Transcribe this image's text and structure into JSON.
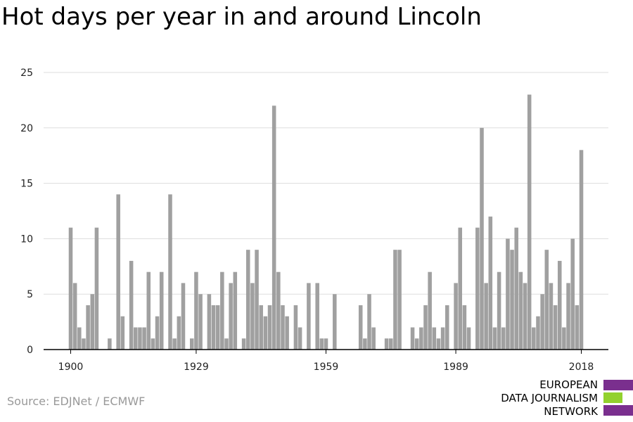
{
  "title": "Hot days per year in and around Lincoln",
  "source": "Source: EDJNet / ECMWF",
  "logo": {
    "line1": "EUROPEAN",
    "line2": "DATA JOURNALISM",
    "line3": "NETWORK",
    "colors": {
      "primary": "#7a2f8e",
      "secondary": "#92d12e"
    }
  },
  "colors": {
    "bar": "#a0a0a0",
    "grid": "#dddddd",
    "axis": "#000000",
    "text": "#222222"
  },
  "chart_data": {
    "type": "bar",
    "title": "Hot days per year in and around Lincoln",
    "xlabel": "",
    "ylabel": "",
    "xlim": [
      1900,
      2018
    ],
    "ylim": [
      0,
      25
    ],
    "yticks": [
      0,
      5,
      10,
      15,
      20,
      25
    ],
    "xticks": [
      1900,
      1929,
      1959,
      1989,
      2018
    ],
    "grid": true,
    "x": [
      1900,
      1901,
      1902,
      1903,
      1904,
      1905,
      1906,
      1907,
      1908,
      1909,
      1910,
      1911,
      1912,
      1913,
      1914,
      1915,
      1916,
      1917,
      1918,
      1919,
      1920,
      1921,
      1922,
      1923,
      1924,
      1925,
      1926,
      1927,
      1928,
      1929,
      1930,
      1931,
      1932,
      1933,
      1934,
      1935,
      1936,
      1937,
      1938,
      1939,
      1940,
      1941,
      1942,
      1943,
      1944,
      1945,
      1946,
      1947,
      1948,
      1949,
      1950,
      1951,
      1952,
      1953,
      1954,
      1955,
      1956,
      1957,
      1958,
      1959,
      1960,
      1961,
      1962,
      1963,
      1964,
      1965,
      1966,
      1967,
      1968,
      1969,
      1970,
      1971,
      1972,
      1973,
      1974,
      1975,
      1976,
      1977,
      1978,
      1979,
      1980,
      1981,
      1982,
      1983,
      1984,
      1985,
      1986,
      1987,
      1988,
      1989,
      1990,
      1991,
      1992,
      1993,
      1994,
      1995,
      1996,
      1997,
      1998,
      1999,
      2000,
      2001,
      2002,
      2003,
      2004,
      2005,
      2006,
      2007,
      2008,
      2009,
      2010,
      2011,
      2012,
      2013,
      2014,
      2015,
      2016,
      2017,
      2018
    ],
    "values": [
      11,
      6,
      2,
      1,
      4,
      5,
      11,
      0,
      0,
      1,
      0,
      14,
      3,
      0,
      8,
      2,
      2,
      2,
      7,
      1,
      3,
      7,
      0,
      14,
      1,
      3,
      6,
      0,
      1,
      7,
      5,
      0,
      5,
      4,
      4,
      7,
      1,
      6,
      7,
      0,
      1,
      9,
      6,
      9,
      4,
      3,
      4,
      22,
      7,
      4,
      3,
      0,
      4,
      2,
      0,
      6,
      0,
      6,
      1,
      1,
      0,
      5,
      0,
      0,
      0,
      0,
      0,
      4,
      1,
      5,
      2,
      0,
      0,
      1,
      1,
      9,
      9,
      0,
      0,
      2,
      1,
      2,
      4,
      7,
      2,
      1,
      2,
      4,
      0,
      6,
      11,
      4,
      2,
      0,
      11,
      20,
      6,
      12,
      2,
      7,
      2,
      10,
      9,
      11,
      7,
      6,
      23,
      2,
      3,
      5,
      9,
      6,
      4,
      8,
      2,
      6,
      10,
      4,
      18
    ]
  }
}
